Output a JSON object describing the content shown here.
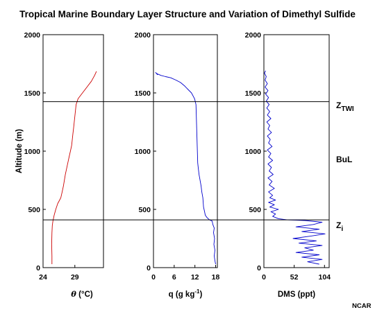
{
  "chart_data": {
    "type": "line",
    "title": "Tropical Marine Boundary Layer Structure and Variation of Dimethyl Sulfide",
    "ylabel": "Altitude (m)",
    "ylim": [
      0,
      2000
    ],
    "yticks": [
      "0",
      "500",
      "1000",
      "1500",
      "2000"
    ],
    "credit": "NCAR",
    "panels": [
      {
        "id": "theta",
        "xlabel_symbol": "θ",
        "xlabel_rest": " (°C)",
        "xlim": [
          24,
          33.5
        ],
        "xticks": [
          24,
          29
        ],
        "color": "#cc0000",
        "series": [
          {
            "values": [
              [
                25.4,
                30
              ],
              [
                25.4,
                100
              ],
              [
                25.35,
                200
              ],
              [
                25.4,
                300
              ],
              [
                25.45,
                360
              ],
              [
                25.55,
                400
              ],
              [
                25.75,
                450
              ],
              [
                26.0,
                500
              ],
              [
                26.3,
                550
              ],
              [
                26.6,
                580
              ],
              [
                26.8,
                600
              ],
              [
                27.0,
                650
              ],
              [
                27.2,
                700
              ],
              [
                27.5,
                800
              ],
              [
                27.7,
                850
              ],
              [
                27.9,
                900
              ],
              [
                28.1,
                950
              ],
              [
                28.3,
                1000
              ],
              [
                28.5,
                1050
              ],
              [
                28.6,
                1100
              ],
              [
                28.7,
                1150
              ],
              [
                28.8,
                1200
              ],
              [
                28.9,
                1250
              ],
              [
                29.0,
                1300
              ],
              [
                29.1,
                1350
              ],
              [
                29.2,
                1400
              ],
              [
                29.5,
                1450
              ],
              [
                30.2,
                1500
              ],
              [
                30.9,
                1550
              ],
              [
                31.6,
                1600
              ],
              [
                32.1,
                1650
              ],
              [
                32.4,
                1685
              ]
            ]
          }
        ]
      },
      {
        "id": "q",
        "xlabel_text": "q  (g kg",
        "xlabel_sup": "-1",
        "xlabel_end": ")",
        "xlim": [
          0,
          18.5
        ],
        "xticks": [
          0,
          6,
          12,
          18
        ],
        "color": "#0000cc",
        "series": [
          {
            "values": [
              [
                18.0,
                30
              ],
              [
                17.8,
                60
              ],
              [
                17.6,
                100
              ],
              [
                17.8,
                150
              ],
              [
                17.5,
                200
              ],
              [
                17.7,
                250
              ],
              [
                17.4,
                300
              ],
              [
                17.6,
                340
              ],
              [
                17.2,
                370
              ],
              [
                17.0,
                400
              ],
              [
                16.2,
                410
              ],
              [
                15.5,
                430
              ],
              [
                15.0,
                450
              ],
              [
                14.8,
                480
              ],
              [
                14.5,
                520
              ],
              [
                14.3,
                600
              ],
              [
                14.0,
                650
              ],
              [
                13.8,
                700
              ],
              [
                13.5,
                750
              ],
              [
                13.2,
                800
              ],
              [
                13.0,
                850
              ],
              [
                12.8,
                900
              ],
              [
                12.7,
                1000
              ],
              [
                12.6,
                1100
              ],
              [
                12.5,
                1200
              ],
              [
                12.4,
                1300
              ],
              [
                12.3,
                1400
              ],
              [
                11.9,
                1450
              ],
              [
                11.0,
                1500
              ],
              [
                10.0,
                1530
              ],
              [
                9.0,
                1560
              ],
              [
                7.8,
                1590
              ],
              [
                6.5,
                1610
              ],
              [
                5.0,
                1630
              ],
              [
                3.5,
                1640
              ],
              [
                2.2,
                1650
              ],
              [
                1.0,
                1665
              ],
              [
                0.6,
                1675
              ],
              [
                1.2,
                1655
              ]
            ]
          }
        ]
      },
      {
        "id": "dms",
        "xlabel_text": "DMS (ppt)",
        "xlim": [
          0,
          112
        ],
        "xticks": [
          0,
          52,
          104
        ],
        "color": "#0000cc",
        "series": [
          {
            "values": [
              [
                95,
                30
              ],
              [
                75,
                50
              ],
              [
                100,
                70
              ],
              [
                65,
                90
              ],
              [
                95,
                110
              ],
              [
                55,
                130
              ],
              [
                85,
                150
              ],
              [
                70,
                170
              ],
              [
                100,
                190
              ],
              [
                60,
                210
              ],
              [
                90,
                230
              ],
              [
                50,
                250
              ],
              [
                80,
                270
              ],
              [
                105,
                290
              ],
              [
                65,
                310
              ],
              [
                95,
                330
              ],
              [
                55,
                350
              ],
              [
                85,
                370
              ],
              [
                100,
                390
              ],
              [
                70,
                405
              ],
              [
                40,
                410
              ],
              [
                25,
                420
              ],
              [
                15,
                440
              ],
              [
                20,
                460
              ],
              [
                12,
                480
              ],
              [
                25,
                500
              ],
              [
                10,
                520
              ],
              [
                18,
                540
              ],
              [
                8,
                560
              ],
              [
                20,
                580
              ],
              [
                10,
                600
              ],
              [
                15,
                620
              ],
              [
                8,
                650
              ],
              [
                18,
                680
              ],
              [
                9,
                710
              ],
              [
                14,
                740
              ],
              [
                7,
                770
              ],
              [
                16,
                800
              ],
              [
                9,
                830
              ],
              [
                13,
                860
              ],
              [
                7,
                890
              ],
              [
                15,
                920
              ],
              [
                8,
                950
              ],
              [
                12,
                980
              ],
              [
                6,
                1010
              ],
              [
                14,
                1040
              ],
              [
                8,
                1070
              ],
              [
                11,
                1100
              ],
              [
                6,
                1130
              ],
              [
                13,
                1160
              ],
              [
                7,
                1190
              ],
              [
                10,
                1220
              ],
              [
                5,
                1250
              ],
              [
                12,
                1280
              ],
              [
                6,
                1310
              ],
              [
                10,
                1340
              ],
              [
                5,
                1370
              ],
              [
                9,
                1400
              ],
              [
                4,
                1430
              ],
              [
                8,
                1460
              ],
              [
                3,
                1490
              ],
              [
                7,
                1520
              ],
              [
                2,
                1550
              ],
              [
                6,
                1580
              ],
              [
                2,
                1610
              ],
              [
                4,
                1640
              ],
              [
                1,
                1670
              ],
              [
                3,
                1690
              ]
            ]
          }
        ]
      }
    ],
    "reference_lines": [
      {
        "y": 1425,
        "label": "Z",
        "sub": "TWI"
      },
      {
        "y": 410,
        "label": "Z",
        "sub": "i"
      }
    ],
    "annotations": [
      {
        "y": 945,
        "text": "BuL"
      }
    ]
  }
}
